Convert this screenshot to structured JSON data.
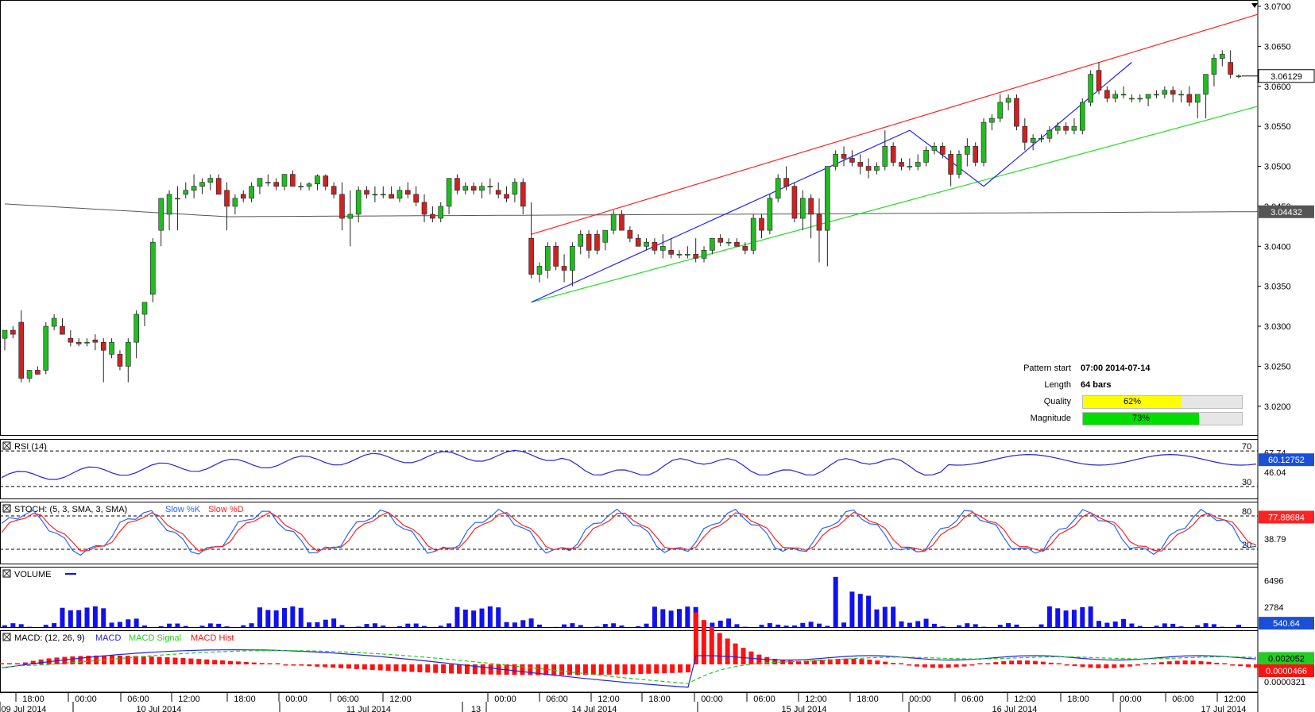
{
  "colors": {
    "bull": "#22bb22",
    "bear": "#cc2222",
    "channel_upper": "#ff2222",
    "channel_lower": "#22dd22",
    "zigzag": "#2222ff",
    "ma": "#555555",
    "rsi": "#2222dd",
    "stoch_k": "#2266ff",
    "stoch_d": "#ff2222",
    "volume": "#1111ee",
    "macd": "#2222dd",
    "macd_signal": "#22cc22",
    "macd_hist": "#ff1111",
    "quality_bar": "#ffff00",
    "magnitude_bar": "#00dd00",
    "price_tag": "#1a4fd6"
  },
  "price_axis": {
    "labels": [
      "3.0700",
      "3.0650",
      "3.0600",
      "3.0550",
      "3.0500",
      "3.0450",
      "3.0400",
      "3.0350",
      "3.0300",
      "3.0250",
      "3.0200"
    ],
    "current_price": "3.06129",
    "ma_price": "3.04432"
  },
  "pattern_info": {
    "start_label": "Pattern start",
    "start_value": "07:00 2014-07-14",
    "length_label": "Length",
    "length_value": "64 bars",
    "quality_label": "Quality",
    "quality_value": "62%",
    "quality_fraction": 0.62,
    "magnitude_label": "Magnitude",
    "magnitude_value": "73%",
    "magnitude_fraction": 0.73
  },
  "panels": {
    "rsi": {
      "title": "RSI (14)",
      "levels": [
        "70",
        "30"
      ],
      "scale_labels": [
        "67.74",
        "46.04"
      ],
      "current": "60.12752"
    },
    "stoch": {
      "title": "STOCH: (5, 3, SMA, 3, SMA)",
      "legend_k": "Slow %K",
      "legend_d": "Slow %D",
      "levels": [
        "80",
        "20"
      ],
      "scale_labels": [
        "77.88684",
        "38.79"
      ],
      "current": "77.88684"
    },
    "volume": {
      "title": "VOLUME",
      "scale_labels": [
        "6496",
        "2784"
      ],
      "current": "540.64"
    },
    "macd": {
      "title": "MACD: (12, 26, 9)",
      "legend_macd": "MACD",
      "legend_signal": "MACD Signal",
      "legend_hist": "MACD Hist",
      "current_main": "0.002052",
      "current_hist": "0.0000466",
      "scale_label": "0.0000321"
    }
  },
  "time_axis": {
    "times": [
      "18:00",
      "00:00",
      "06:00",
      "12:00",
      "18:00",
      "00:00",
      "06:00",
      "12:00",
      "00:00",
      "06:00",
      "12:00",
      "18:00",
      "00:00",
      "06:00",
      "12:00",
      "18:00",
      "00:00",
      "06:00",
      "12:00",
      "18:00",
      "00:00",
      "06:00",
      "12:00"
    ],
    "dates": [
      "09 Jul 2014",
      "10 Jul 2014",
      "11 Jul 2014",
      "13",
      "14 Jul 2014",
      "15 Jul 2014",
      "16 Jul 2014",
      "17 Jul 2014"
    ]
  },
  "chart_data": {
    "type": "candlestick",
    "symbol_timeframe": "hourly",
    "ylim": [
      3.0175,
      3.07
    ],
    "candles": [
      [
        3.0285,
        3.0295,
        3.027,
        3.0295
      ],
      [
        3.0295,
        3.03,
        3.0285,
        3.029
      ],
      [
        3.0305,
        3.032,
        3.023,
        3.0235
      ],
      [
        3.0235,
        3.0245,
        3.023,
        3.0245
      ],
      [
        3.0245,
        3.025,
        3.024,
        3.024
      ],
      [
        3.0245,
        3.0305,
        3.024,
        3.03
      ],
      [
        3.03,
        3.0315,
        3.0295,
        3.031
      ],
      [
        3.03,
        3.031,
        3.029,
        3.029
      ],
      [
        3.0285,
        3.0295,
        3.0275,
        3.028
      ],
      [
        3.028,
        3.0285,
        3.0275,
        3.0278
      ],
      [
        3.028,
        3.0285,
        3.0275,
        3.028
      ],
      [
        3.0283,
        3.029,
        3.027,
        3.028
      ],
      [
        3.028,
        3.0285,
        3.023,
        3.027
      ],
      [
        3.0265,
        3.0285,
        3.026,
        3.028
      ],
      [
        3.0265,
        3.027,
        3.0245,
        3.025
      ],
      [
        3.025,
        3.0285,
        3.023,
        3.028
      ],
      [
        3.028,
        3.032,
        3.026,
        3.0315
      ],
      [
        3.0315,
        3.033,
        3.03,
        3.033
      ],
      [
        3.034,
        3.041,
        3.033,
        3.0405
      ],
      [
        3.042,
        3.046,
        3.04,
        3.046
      ],
      [
        3.044,
        3.047,
        3.042,
        3.0465
      ],
      [
        3.046,
        3.0475,
        3.042,
        3.046
      ],
      [
        3.0465,
        3.048,
        3.046,
        3.047
      ],
      [
        3.047,
        3.049,
        3.046,
        3.0475
      ],
      [
        3.0475,
        3.0485,
        3.0465,
        3.048
      ],
      [
        3.048,
        3.049,
        3.047,
        3.0485
      ],
      [
        3.0485,
        3.049,
        3.0465,
        3.0465
      ],
      [
        3.047,
        3.048,
        3.042,
        3.045
      ],
      [
        3.045,
        3.0465,
        3.044,
        3.046
      ],
      [
        3.0465,
        3.047,
        3.0455,
        3.046
      ],
      [
        3.046,
        3.048,
        3.0455,
        3.0475
      ],
      [
        3.0475,
        3.0485,
        3.0465,
        3.0485
      ],
      [
        3.048,
        3.049,
        3.0475,
        3.048
      ],
      [
        3.048,
        3.0485,
        3.047,
        3.0475
      ],
      [
        3.0475,
        3.049,
        3.047,
        3.049
      ],
      [
        3.049,
        3.0495,
        3.0475,
        3.0475
      ],
      [
        3.0475,
        3.048,
        3.047,
        3.0475
      ],
      [
        3.0475,
        3.048,
        3.047,
        3.0478
      ],
      [
        3.0478,
        3.049,
        3.047,
        3.0488
      ],
      [
        3.0488,
        3.049,
        3.047,
        3.0475
      ],
      [
        3.0475,
        3.048,
        3.046,
        3.0465
      ],
      [
        3.0465,
        3.048,
        3.042,
        3.0435
      ],
      [
        3.0435,
        3.047,
        3.04,
        3.044
      ],
      [
        3.044,
        3.0475,
        3.043,
        3.047
      ],
      [
        3.047,
        3.0475,
        3.046,
        3.0465
      ],
      [
        3.0465,
        3.0475,
        3.0455,
        3.0465
      ],
      [
        3.0465,
        3.0475,
        3.046,
        3.0465
      ],
      [
        3.0465,
        3.0475,
        3.046,
        3.046
      ],
      [
        3.046,
        3.0475,
        3.0455,
        3.047
      ],
      [
        3.047,
        3.048,
        3.046,
        3.0465
      ],
      [
        3.0465,
        3.0475,
        3.045,
        3.0455
      ],
      [
        3.0455,
        3.0465,
        3.043,
        3.044
      ],
      [
        3.044,
        3.045,
        3.043,
        3.0435
      ],
      [
        3.0435,
        3.0455,
        3.043,
        3.045
      ],
      [
        3.045,
        3.0485,
        3.044,
        3.0485
      ],
      [
        3.0485,
        3.049,
        3.0465,
        3.047
      ],
      [
        3.047,
        3.048,
        3.0465,
        3.0475
      ],
      [
        3.0475,
        3.048,
        3.0465,
        3.047
      ],
      [
        3.047,
        3.048,
        3.046,
        3.0475
      ],
      [
        3.0475,
        3.0485,
        3.0465,
        3.0475
      ],
      [
        3.047,
        3.048,
        3.046,
        3.0465
      ],
      [
        3.0465,
        3.0475,
        3.0455,
        3.046
      ],
      [
        3.0465,
        3.0485,
        3.0455,
        3.048
      ],
      [
        3.048,
        3.0485,
        3.044,
        3.045
      ],
      [
        3.041,
        3.0455,
        3.036,
        3.0365
      ],
      [
        3.0365,
        3.038,
        3.0355,
        3.0375
      ],
      [
        3.037,
        3.0405,
        3.036,
        3.04
      ],
      [
        3.04,
        3.0405,
        3.037,
        3.0375
      ],
      [
        3.0375,
        3.039,
        3.0355,
        3.037
      ],
      [
        3.037,
        3.0405,
        3.035,
        3.04
      ],
      [
        3.04,
        3.042,
        3.039,
        3.0415
      ],
      [
        3.0415,
        3.042,
        3.0385,
        3.0395
      ],
      [
        3.0415,
        3.042,
        3.039,
        3.0395
      ],
      [
        3.0405,
        3.042,
        3.0395,
        3.042
      ],
      [
        3.042,
        3.0445,
        3.0415,
        3.044
      ],
      [
        3.044,
        3.0445,
        3.042,
        3.042
      ],
      [
        3.042,
        3.0425,
        3.0405,
        3.041
      ],
      [
        3.041,
        3.0415,
        3.04,
        3.04
      ],
      [
        3.04,
        3.041,
        3.0395,
        3.0405
      ],
      [
        3.0405,
        3.041,
        3.039,
        3.0395
      ],
      [
        3.0395,
        3.0415,
        3.0385,
        3.04
      ],
      [
        3.0395,
        3.041,
        3.0385,
        3.039
      ],
      [
        3.039,
        3.0395,
        3.0385,
        3.039
      ],
      [
        3.039,
        3.04,
        3.0385,
        3.039
      ],
      [
        3.039,
        3.041,
        3.038,
        3.0385
      ],
      [
        3.0385,
        3.04,
        3.038,
        3.0395
      ],
      [
        3.0395,
        3.041,
        3.039,
        3.041
      ],
      [
        3.041,
        3.0415,
        3.04,
        3.0405
      ],
      [
        3.0405,
        3.041,
        3.04,
        3.0405
      ],
      [
        3.0405,
        3.041,
        3.04,
        3.04
      ],
      [
        3.04,
        3.0405,
        3.039,
        3.0395
      ],
      [
        3.0395,
        3.044,
        3.039,
        3.0435
      ],
      [
        3.0435,
        3.044,
        3.041,
        3.042
      ],
      [
        3.042,
        3.0465,
        3.0415,
        3.046
      ],
      [
        3.046,
        3.049,
        3.0455,
        3.0485
      ],
      [
        3.0485,
        3.05,
        3.047,
        3.0475
      ],
      [
        3.0475,
        3.048,
        3.043,
        3.0435
      ],
      [
        3.0435,
        3.047,
        3.042,
        3.046
      ],
      [
        3.046,
        3.0465,
        3.041,
        3.044
      ],
      [
        3.044,
        3.046,
        3.038,
        3.042
      ],
      [
        3.042,
        3.05,
        3.0375,
        3.05
      ],
      [
        3.05,
        3.052,
        3.0495,
        3.0515
      ],
      [
        3.0515,
        3.0525,
        3.05,
        3.051
      ],
      [
        3.051,
        3.052,
        3.05,
        3.0505
      ],
      [
        3.0505,
        3.0515,
        3.049,
        3.05
      ],
      [
        3.05,
        3.051,
        3.0485,
        3.0495
      ],
      [
        3.0495,
        3.0505,
        3.049,
        3.05
      ],
      [
        3.05,
        3.0545,
        3.0495,
        3.0525
      ],
      [
        3.0525,
        3.053,
        3.05,
        3.0505
      ],
      [
        3.0505,
        3.051,
        3.0495,
        3.05
      ],
      [
        3.05,
        3.051,
        3.0495,
        3.05
      ],
      [
        3.05,
        3.0515,
        3.0495,
        3.0505
      ],
      [
        3.0505,
        3.0525,
        3.05,
        3.052
      ],
      [
        3.052,
        3.053,
        3.0515,
        3.0525
      ],
      [
        3.0525,
        3.053,
        3.051,
        3.0515
      ],
      [
        3.0515,
        3.052,
        3.0475,
        3.049
      ],
      [
        3.049,
        3.052,
        3.0485,
        3.0515
      ],
      [
        3.0515,
        3.0535,
        3.05,
        3.0525
      ],
      [
        3.0525,
        3.053,
        3.05,
        3.0505
      ],
      [
        3.0505,
        3.056,
        3.05,
        3.0555
      ],
      [
        3.0555,
        3.0565,
        3.0545,
        3.056
      ],
      [
        3.056,
        3.059,
        3.0555,
        3.058
      ],
      [
        3.058,
        3.059,
        3.057,
        3.0585
      ],
      [
        3.0585,
        3.059,
        3.0545,
        3.055
      ],
      [
        3.055,
        3.056,
        3.052,
        3.053
      ],
      [
        3.053,
        3.054,
        3.052,
        3.0535
      ],
      [
        3.0535,
        3.054,
        3.053,
        3.0535
      ],
      [
        3.0535,
        3.055,
        3.053,
        3.0545
      ],
      [
        3.0545,
        3.0555,
        3.054,
        3.055
      ],
      [
        3.055,
        3.0555,
        3.054,
        3.0545
      ],
      [
        3.0545,
        3.056,
        3.054,
        3.055
      ],
      [
        3.0545,
        3.0585,
        3.054,
        3.058
      ],
      [
        3.058,
        3.062,
        3.0575,
        3.0615
      ],
      [
        3.062,
        3.063,
        3.059,
        3.0595
      ],
      [
        3.0595,
        3.06,
        3.058,
        3.0585
      ],
      [
        3.0585,
        3.0595,
        3.058,
        3.059
      ],
      [
        3.059,
        3.06,
        3.0585,
        3.059
      ],
      [
        3.0585,
        3.059,
        3.058,
        3.0585
      ],
      [
        3.0585,
        3.059,
        3.058,
        3.0585
      ],
      [
        3.0585,
        3.059,
        3.0575,
        3.059
      ],
      [
        3.059,
        3.0595,
        3.0585,
        3.059
      ],
      [
        3.059,
        3.06,
        3.0585,
        3.0595
      ],
      [
        3.0595,
        3.06,
        3.058,
        3.059
      ],
      [
        3.059,
        3.0595,
        3.058,
        3.059
      ],
      [
        3.059,
        3.06,
        3.0575,
        3.058
      ],
      [
        3.058,
        3.059,
        3.056,
        3.059
      ],
      [
        3.059,
        3.0615,
        3.056,
        3.0615
      ],
      [
        3.0615,
        3.064,
        3.06,
        3.0635
      ],
      [
        3.0635,
        3.0645,
        3.0625,
        3.064
      ],
      [
        3.063,
        3.0645,
        3.061,
        3.0615
      ],
      [
        3.0612,
        3.0615,
        3.061,
        3.0613
      ]
    ]
  }
}
